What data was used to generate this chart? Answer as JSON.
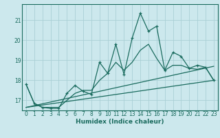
{
  "xlabel": "Humidex (Indice chaleur)",
  "ylabel": "",
  "bg_color": "#cce8ed",
  "grid_color": "#aacfd6",
  "line_color": "#1a6b5e",
  "xlim": [
    -0.5,
    23.5
  ],
  "ylim": [
    16.5,
    21.8
  ],
  "yticks": [
    17,
    18,
    19,
    20,
    21
  ],
  "xticks": [
    0,
    1,
    2,
    3,
    4,
    5,
    6,
    7,
    8,
    9,
    10,
    11,
    12,
    13,
    14,
    15,
    16,
    17,
    18,
    19,
    20,
    21,
    22,
    23
  ],
  "series_main": {
    "x": [
      0,
      1,
      2,
      3,
      4,
      5,
      6,
      7,
      8,
      9,
      10,
      11,
      12,
      13,
      14,
      15,
      16,
      17,
      18,
      19,
      20,
      21,
      22,
      23
    ],
    "y": [
      17.8,
      16.85,
      16.65,
      16.6,
      16.6,
      17.35,
      17.75,
      17.45,
      17.3,
      18.9,
      18.35,
      19.8,
      18.3,
      20.1,
      21.35,
      20.45,
      20.7,
      18.5,
      19.4,
      19.2,
      18.6,
      18.75,
      18.65,
      18.0
    ]
  },
  "series_smooth": {
    "x": [
      0,
      1,
      2,
      3,
      4,
      5,
      6,
      7,
      8,
      9,
      10,
      11,
      12,
      13,
      14,
      15,
      16,
      17,
      18,
      19,
      20,
      21,
      22,
      23
    ],
    "y": [
      17.8,
      16.85,
      16.65,
      16.65,
      16.65,
      17.0,
      17.35,
      17.5,
      17.5,
      18.0,
      18.35,
      18.9,
      18.5,
      18.9,
      19.5,
      19.8,
      19.1,
      18.5,
      18.75,
      18.75,
      18.6,
      18.55,
      18.65,
      18.0
    ]
  },
  "series_linear1": {
    "x": [
      0,
      23
    ],
    "y": [
      16.65,
      18.0
    ]
  },
  "series_linear2": {
    "x": [
      0,
      23
    ],
    "y": [
      16.65,
      18.7
    ]
  }
}
